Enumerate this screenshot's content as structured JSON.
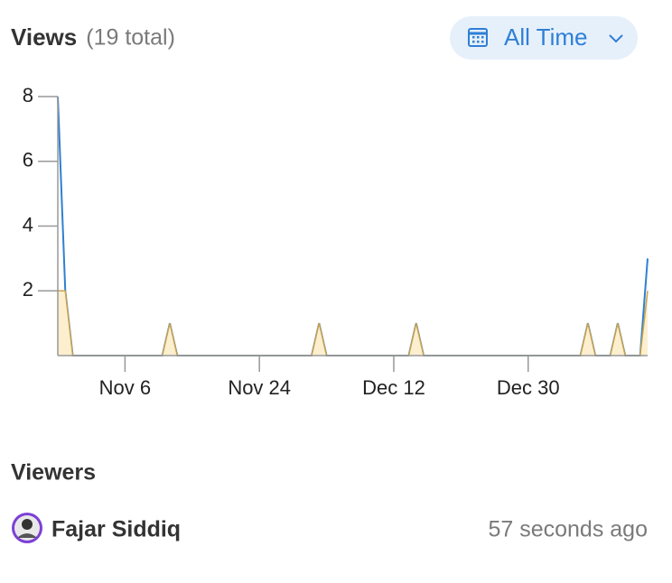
{
  "header": {
    "title": "Views",
    "subtitle": "(19 total)",
    "button": "All Time"
  },
  "chart_data": {
    "type": "area",
    "x": [
      "Oct 28",
      "Oct 29",
      "Oct 30",
      "Oct 31",
      "Nov 1",
      "Nov 2",
      "Nov 3",
      "Nov 4",
      "Nov 5",
      "Nov 6",
      "Nov 7",
      "Nov 8",
      "Nov 9",
      "Nov 10",
      "Nov 11",
      "Nov 12",
      "Nov 13",
      "Nov 14",
      "Nov 15",
      "Nov 16",
      "Nov 17",
      "Nov 18",
      "Nov 19",
      "Nov 20",
      "Nov 21",
      "Nov 22",
      "Nov 23",
      "Nov 24",
      "Nov 25",
      "Nov 26",
      "Nov 27",
      "Nov 28",
      "Nov 29",
      "Nov 30",
      "Dec 1",
      "Dec 2",
      "Dec 3",
      "Dec 4",
      "Dec 5",
      "Dec 6",
      "Dec 7",
      "Dec 8",
      "Dec 9",
      "Dec 10",
      "Dec 11",
      "Dec 12",
      "Dec 13",
      "Dec 14",
      "Dec 15",
      "Dec 16",
      "Dec 17",
      "Dec 18",
      "Dec 19",
      "Dec 20",
      "Dec 21",
      "Dec 22",
      "Dec 23",
      "Dec 24",
      "Dec 25",
      "Dec 26",
      "Dec 27",
      "Dec 28",
      "Dec 29",
      "Dec 30",
      "Dec 31",
      "Jan 1",
      "Jan 2",
      "Jan 3",
      "Jan 4",
      "Jan 5",
      "Jan 6",
      "Jan 7",
      "Jan 8",
      "Jan 9",
      "Jan 10",
      "Jan 11",
      "Jan 12",
      "Jan 13",
      "Jan 14",
      "Jan 15"
    ],
    "series": [
      {
        "type": "line",
        "color": "#2f80d1",
        "values": [
          8,
          2,
          0,
          0,
          0,
          0,
          0,
          0,
          0,
          0,
          0,
          0,
          0,
          0,
          0,
          1,
          0,
          0,
          0,
          0,
          0,
          0,
          0,
          0,
          0,
          0,
          0,
          0,
          0,
          0,
          0,
          0,
          0,
          0,
          0,
          1,
          0,
          0,
          0,
          0,
          0,
          0,
          0,
          0,
          0,
          0,
          0,
          0,
          1,
          0,
          0,
          0,
          0,
          0,
          0,
          0,
          0,
          0,
          0,
          0,
          0,
          0,
          0,
          0,
          0,
          0,
          0,
          0,
          0,
          0,
          0,
          1,
          0,
          0,
          0,
          1,
          0,
          0,
          0,
          3
        ]
      },
      {
        "type": "area",
        "color": "#c9a24c",
        "fill": "#fcefcf",
        "values": [
          2,
          2,
          0,
          0,
          0,
          0,
          0,
          0,
          0,
          0,
          0,
          0,
          0,
          0,
          0,
          1,
          0,
          0,
          0,
          0,
          0,
          0,
          0,
          0,
          0,
          0,
          0,
          0,
          0,
          0,
          0,
          0,
          0,
          0,
          0,
          1,
          0,
          0,
          0,
          0,
          0,
          0,
          0,
          0,
          0,
          0,
          0,
          0,
          1,
          0,
          0,
          0,
          0,
          0,
          0,
          0,
          0,
          0,
          0,
          0,
          0,
          0,
          0,
          0,
          0,
          0,
          0,
          0,
          0,
          0,
          0,
          1,
          0,
          0,
          0,
          1,
          0,
          0,
          0,
          2
        ]
      }
    ],
    "ylim": [
      0,
      8
    ],
    "yticks": [
      2,
      4,
      6,
      8
    ],
    "xticks": [
      "Nov 6",
      "Nov 24",
      "Dec 12",
      "Dec 30"
    ]
  },
  "viewers": {
    "title": "Viewers",
    "items": [
      {
        "name": "Fajar Siddiq",
        "time": "57 seconds ago"
      }
    ]
  }
}
